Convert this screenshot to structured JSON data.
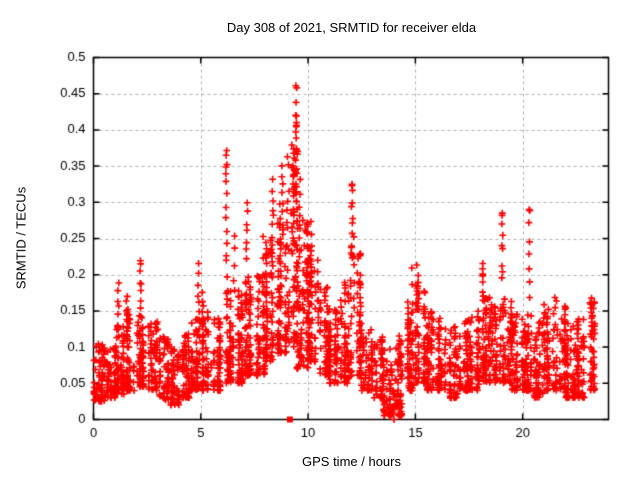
{
  "chart_data": {
    "type": "scatter",
    "title": "Day 308 of 2021, SRMTID for receiver elda",
    "xlabel": "GPS time / hours",
    "ylabel": "SRMTID / TECUs",
    "xlim": [
      0,
      24
    ],
    "ylim": [
      0,
      0.5
    ],
    "xtick_values": [
      0,
      5,
      10,
      15,
      20
    ],
    "xtick_labels": [
      "0",
      "5",
      "10",
      "15",
      "20"
    ],
    "ytick_values": [
      0,
      0.05,
      0.1,
      0.15,
      0.2,
      0.25,
      0.3,
      0.35,
      0.4,
      0.45,
      0.5
    ],
    "ytick_labels": [
      "0",
      "0.05",
      "0.1",
      "0.15",
      "0.2",
      "0.25",
      "0.3",
      "0.35",
      "0.4",
      "0.45",
      "0.5"
    ],
    "grid": true,
    "legend": "none",
    "marker": "plus",
    "colors": {
      "points": "#ff0000",
      "grid": "#b0b0b0",
      "axis": "#000000",
      "background": "#ffffff",
      "text": "#000000"
    },
    "seed": 308,
    "envelope_bins": [
      [
        0.0,
        0.5,
        0.025,
        0.105,
        60
      ],
      [
        0.5,
        1.0,
        0.03,
        0.1,
        55
      ],
      [
        1.0,
        1.5,
        0.035,
        0.13,
        60
      ],
      [
        1.5,
        2.0,
        0.04,
        0.155,
        60
      ],
      [
        2.0,
        2.5,
        0.045,
        0.15,
        65
      ],
      [
        2.5,
        3.0,
        0.04,
        0.135,
        60
      ],
      [
        3.0,
        3.5,
        0.025,
        0.12,
        55
      ],
      [
        3.5,
        4.0,
        0.02,
        0.1,
        55
      ],
      [
        4.0,
        4.5,
        0.03,
        0.12,
        55
      ],
      [
        4.5,
        5.0,
        0.04,
        0.14,
        60
      ],
      [
        5.0,
        5.5,
        0.04,
        0.15,
        60
      ],
      [
        5.5,
        6.0,
        0.04,
        0.14,
        55
      ],
      [
        6.0,
        6.5,
        0.05,
        0.18,
        65
      ],
      [
        6.5,
        7.0,
        0.05,
        0.18,
        60
      ],
      [
        7.0,
        7.5,
        0.06,
        0.2,
        65
      ],
      [
        7.5,
        8.0,
        0.06,
        0.2,
        60
      ],
      [
        8.0,
        8.5,
        0.08,
        0.26,
        70
      ],
      [
        8.5,
        9.0,
        0.09,
        0.3,
        75
      ],
      [
        9.0,
        9.5,
        0.1,
        0.38,
        80
      ],
      [
        9.5,
        10.0,
        0.07,
        0.28,
        75
      ],
      [
        10.0,
        10.5,
        0.08,
        0.24,
        70
      ],
      [
        10.5,
        11.0,
        0.06,
        0.19,
        60
      ],
      [
        11.0,
        11.5,
        0.05,
        0.16,
        55
      ],
      [
        11.5,
        12.0,
        0.05,
        0.19,
        60
      ],
      [
        12.0,
        12.5,
        0.06,
        0.24,
        65
      ],
      [
        12.5,
        13.0,
        0.04,
        0.14,
        55
      ],
      [
        13.0,
        13.5,
        0.03,
        0.12,
        55
      ],
      [
        13.5,
        14.0,
        0.005,
        0.1,
        55
      ],
      [
        14.0,
        14.5,
        0.005,
        0.12,
        60
      ],
      [
        14.5,
        15.0,
        0.04,
        0.17,
        60
      ],
      [
        15.0,
        15.5,
        0.05,
        0.19,
        65
      ],
      [
        15.5,
        16.0,
        0.04,
        0.15,
        60
      ],
      [
        16.0,
        16.5,
        0.04,
        0.14,
        60
      ],
      [
        16.5,
        17.0,
        0.03,
        0.13,
        55
      ],
      [
        17.0,
        17.5,
        0.04,
        0.14,
        60
      ],
      [
        17.5,
        18.0,
        0.04,
        0.15,
        60
      ],
      [
        18.0,
        18.5,
        0.05,
        0.17,
        60
      ],
      [
        18.5,
        19.0,
        0.05,
        0.16,
        55
      ],
      [
        19.0,
        19.5,
        0.05,
        0.17,
        60
      ],
      [
        19.5,
        20.0,
        0.04,
        0.15,
        55
      ],
      [
        20.0,
        20.5,
        0.04,
        0.15,
        60
      ],
      [
        20.5,
        21.0,
        0.03,
        0.14,
        60
      ],
      [
        21.0,
        21.5,
        0.04,
        0.16,
        60
      ],
      [
        21.5,
        22.0,
        0.04,
        0.17,
        60
      ],
      [
        22.0,
        22.5,
        0.03,
        0.14,
        60
      ],
      [
        22.5,
        23.0,
        0.03,
        0.15,
        55
      ],
      [
        23.0,
        23.35,
        0.04,
        0.17,
        45
      ]
    ],
    "spike_columns": [
      [
        1.15,
        0.12,
        0.19,
        7
      ],
      [
        1.55,
        0.12,
        0.175,
        5
      ],
      [
        2.2,
        0.14,
        0.215,
        8
      ],
      [
        4.9,
        0.13,
        0.21,
        8
      ],
      [
        5.1,
        0.13,
        0.18,
        5
      ],
      [
        6.2,
        0.2,
        0.37,
        12
      ],
      [
        6.55,
        0.18,
        0.25,
        5
      ],
      [
        7.15,
        0.22,
        0.3,
        7
      ],
      [
        7.9,
        0.18,
        0.25,
        4
      ],
      [
        8.35,
        0.22,
        0.33,
        10
      ],
      [
        8.8,
        0.25,
        0.345,
        9
      ],
      [
        9.3,
        0.25,
        0.35,
        10
      ],
      [
        9.45,
        0.3,
        0.42,
        14
      ],
      [
        9.6,
        0.22,
        0.33,
        8
      ],
      [
        9.85,
        0.15,
        0.26,
        6
      ],
      [
        10.15,
        0.18,
        0.27,
        8
      ],
      [
        10.45,
        0.15,
        0.22,
        5
      ],
      [
        12.05,
        0.22,
        0.325,
        10
      ],
      [
        12.15,
        0.15,
        0.25,
        6
      ],
      [
        14.85,
        0.12,
        0.21,
        5
      ],
      [
        15.1,
        0.13,
        0.21,
        6
      ],
      [
        18.15,
        0.16,
        0.22,
        8
      ],
      [
        19.05,
        0.19,
        0.285,
        8
      ],
      [
        20.3,
        0.17,
        0.29,
        7
      ],
      [
        21.5,
        0.12,
        0.17,
        4
      ],
      [
        23.2,
        0.12,
        0.17,
        5
      ]
    ],
    "notable_points": [
      [
        9.43,
        0.461
      ],
      [
        9.47,
        0.458
      ],
      [
        9.44,
        0.438
      ],
      [
        9.42,
        0.42
      ],
      [
        9.46,
        0.41
      ],
      [
        2.2,
        0.215
      ],
      [
        6.18,
        0.365
      ],
      [
        6.22,
        0.352
      ],
      [
        12.05,
        0.325
      ],
      [
        19.05,
        0.285
      ],
      [
        20.3,
        0.29
      ],
      [
        13.95,
        0.01
      ],
      [
        14.0,
        0.0
      ],
      [
        14.05,
        0.02
      ],
      [
        14.02,
        0.035
      ]
    ],
    "zero_square_markers": [
      [
        9.15,
        0
      ]
    ]
  }
}
